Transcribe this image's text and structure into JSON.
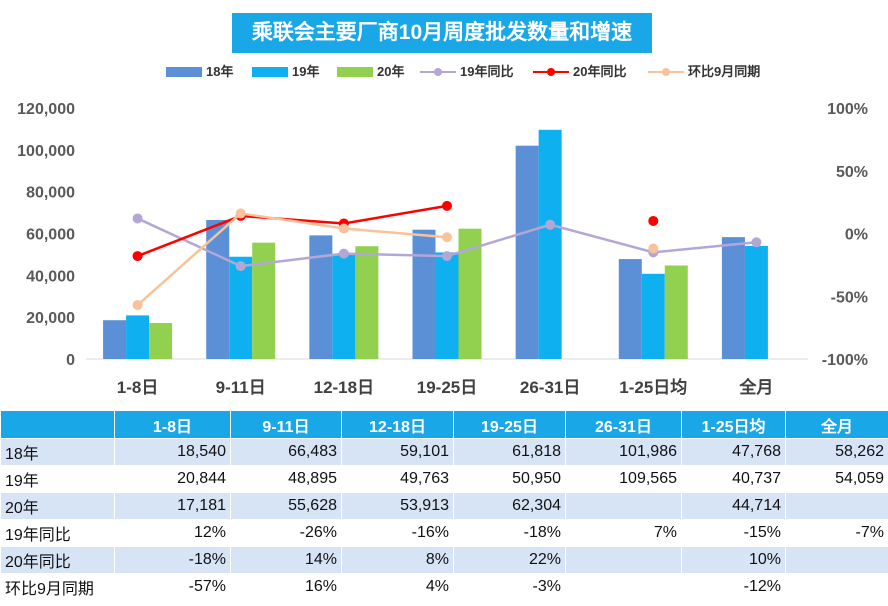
{
  "chart_data": {
    "type": "bar",
    "title": "乘联会主要厂商10月周度批发数量和增速",
    "categories": [
      "1-8日",
      "9-11日",
      "12-18日",
      "19-25日",
      "26-31日",
      "1-25日均",
      "全月"
    ],
    "series": [
      {
        "name": "18年",
        "kind": "bar",
        "color": "#5b8fd6",
        "values": [
          18540,
          66483,
          59101,
          61818,
          101986,
          47768,
          58262
        ]
      },
      {
        "name": "19年",
        "kind": "bar",
        "color": "#0fb0f0",
        "values": [
          20844,
          48895,
          49763,
          50950,
          109565,
          40737,
          54059
        ]
      },
      {
        "name": "20年",
        "kind": "bar",
        "color": "#92d050",
        "values": [
          17181,
          55628,
          53913,
          62304,
          null,
          44714,
          null
        ]
      },
      {
        "name": "19年同比",
        "kind": "line",
        "axis": "right",
        "color": "#b4a7d6",
        "values": [
          0.12,
          -0.26,
          -0.16,
          -0.18,
          0.07,
          -0.15,
          -0.07
        ]
      },
      {
        "name": "20年同比",
        "kind": "line",
        "axis": "right",
        "color": "#ff0000",
        "values": [
          -0.18,
          0.14,
          0.08,
          0.22,
          null,
          0.1,
          null
        ],
        "break_before_index": 5
      },
      {
        "name": "环比9月同期",
        "kind": "line",
        "axis": "right",
        "color": "#f9c29b",
        "values": [
          -0.57,
          0.16,
          0.04,
          -0.03,
          null,
          -0.12,
          null
        ],
        "break_before_index": 5
      }
    ],
    "y_left": {
      "min": 0,
      "max": 120000,
      "ticks": [
        "0",
        "20,000",
        "40,000",
        "60,000",
        "80,000",
        "100,000",
        "120,000"
      ]
    },
    "y_right": {
      "min": -1.0,
      "max": 1.0,
      "ticks": [
        "-100%",
        "-50%",
        "0%",
        "50%",
        "100%"
      ]
    },
    "legend_position": "top",
    "grid": false
  },
  "table": {
    "headers": [
      "",
      "1-8日",
      "9-11日",
      "12-18日",
      "19-25日",
      "26-31日",
      "1-25日均",
      "全月"
    ],
    "rows": [
      {
        "label": "18年",
        "cells": [
          "18,540",
          "66,483",
          "59,101",
          "61,818",
          "101,986",
          "47,768",
          "58,262"
        ]
      },
      {
        "label": "19年",
        "cells": [
          "20,844",
          "48,895",
          "49,763",
          "50,950",
          "109,565",
          "40,737",
          "54,059"
        ]
      },
      {
        "label": "20年",
        "cells": [
          "17,181",
          "55,628",
          "53,913",
          "62,304",
          "",
          "44,714",
          ""
        ]
      },
      {
        "label": "19年同比",
        "cells": [
          "12%",
          "-26%",
          "-16%",
          "-18%",
          "7%",
          "-15%",
          "-7%"
        ]
      },
      {
        "label": "20年同比",
        "cells": [
          "-18%",
          "14%",
          "8%",
          "22%",
          "",
          "10%",
          ""
        ]
      },
      {
        "label": "环比9月同期",
        "cells": [
          "-57%",
          "16%",
          "4%",
          "-3%",
          "",
          "-12%",
          ""
        ]
      }
    ]
  }
}
